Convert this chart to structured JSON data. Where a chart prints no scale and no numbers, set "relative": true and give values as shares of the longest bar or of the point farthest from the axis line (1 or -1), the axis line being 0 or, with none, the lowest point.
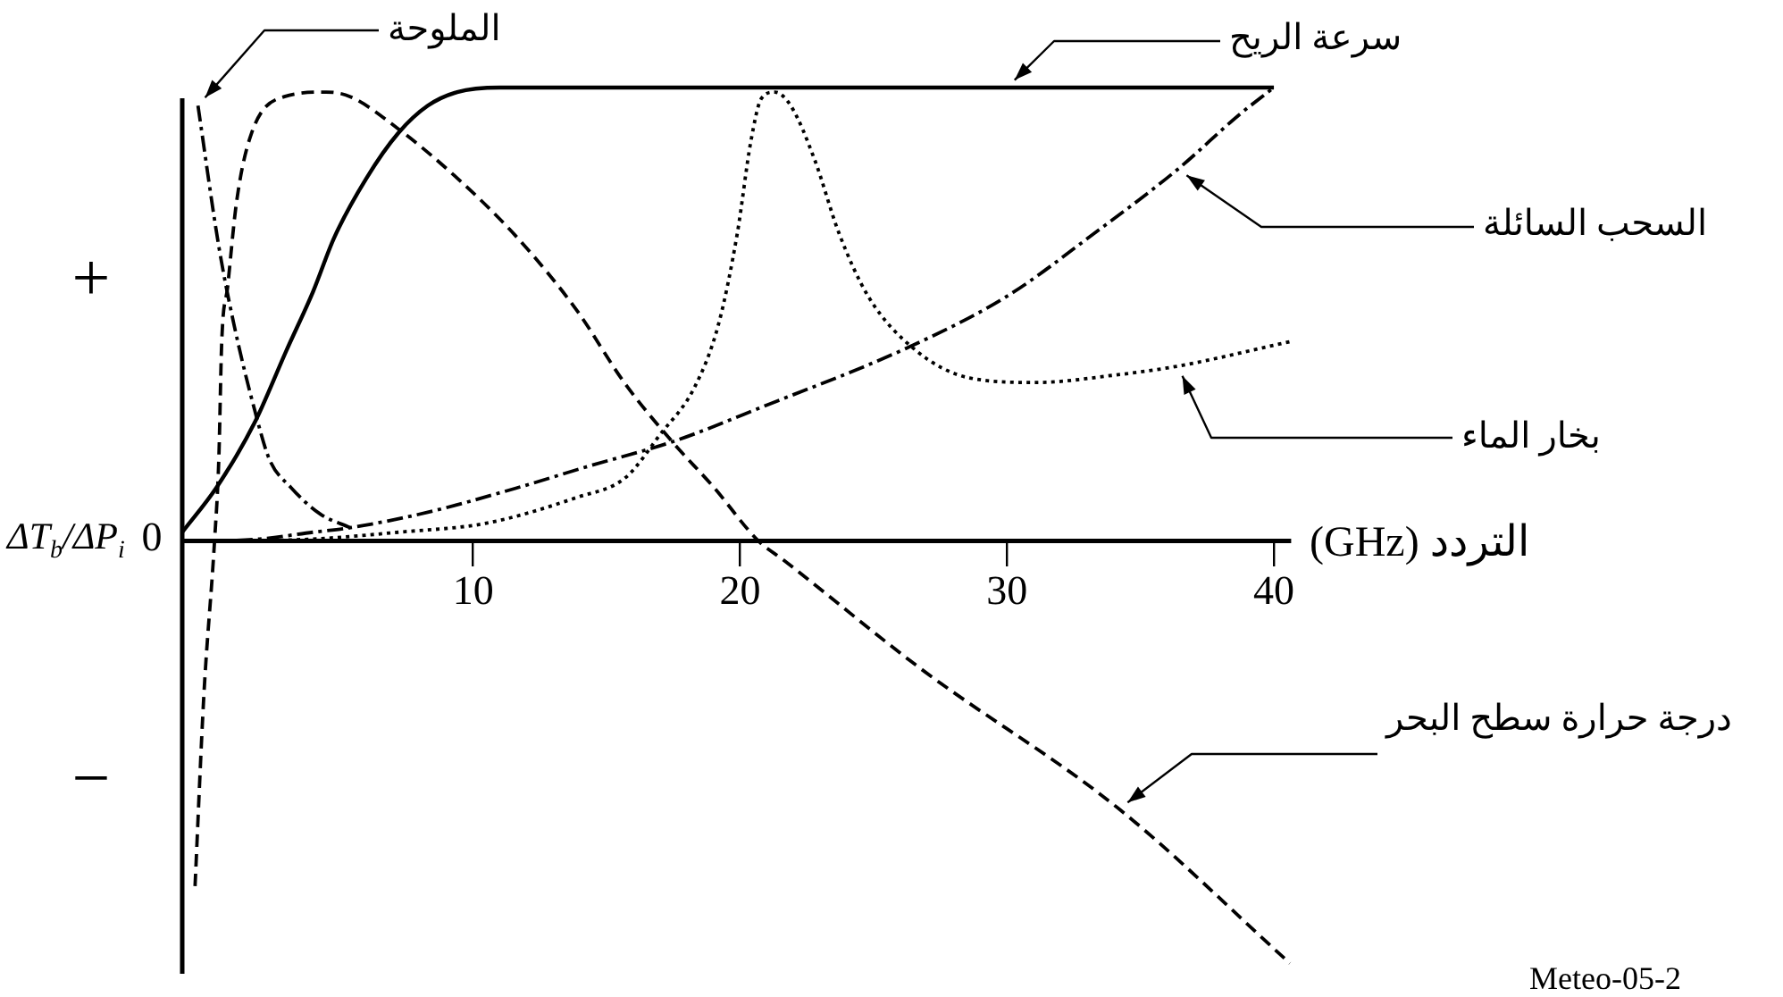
{
  "chart_data": {
    "type": "line",
    "relative": true,
    "xlabel": "التردد (GHz)",
    "ylabel": "ΔT$_{b}$/ΔP$_{i}$",
    "xlim": [
      -0.9,
      40.6
    ],
    "xticks": [
      10,
      20,
      30,
      40
    ],
    "annotations": [
      "+",
      "0",
      "−",
      "Meteo-05-2"
    ],
    "series": [
      {
        "name": "سرعة الريح",
        "color": "#000000",
        "line_style": "solid",
        "x": [
          -0.9,
          0.4,
          1.8,
          3.0,
          4.0,
          4.8,
          6.0,
          7.2,
          8.3,
          9.4,
          11,
          20,
          30,
          40
        ],
        "values": [
          0.02,
          0.12,
          0.26,
          0.42,
          0.55,
          0.67,
          0.8,
          0.9,
          0.96,
          0.99,
          1.0,
          1.0,
          1.0,
          1.0
        ]
      },
      {
        "name": "الملوحة",
        "color": "#000000",
        "line_style": "dashdot",
        "x": [
          -0.31,
          0.47,
          1.03,
          1.81,
          2.37,
          3.15,
          4.27,
          5.39
        ],
        "values": [
          0.96,
          0.65,
          0.48,
          0.29,
          0.18,
          0.12,
          0.06,
          0.03
        ]
      },
      {
        "name": "السحب السائلة",
        "color": "#000000",
        "line_style": "dashdot",
        "x": [
          0,
          2,
          4,
          5.4,
          8.3,
          11.6,
          14.3,
          17.5,
          21,
          26.4,
          30,
          33.3,
          36.4,
          38.7,
          40
        ],
        "values": [
          0,
          0.005,
          0.02,
          0.03,
          0.064,
          0.117,
          0.165,
          0.22,
          0.3,
          0.43,
          0.54,
          0.68,
          0.82,
          0.94,
          1.0
        ]
      },
      {
        "name": "بخار الماء",
        "color": "#000000",
        "line_style": "dotted",
        "x": [
          0,
          4,
          7.2,
          10.5,
          13.9,
          15.7,
          17,
          18.3,
          19.2,
          19.9,
          20.4,
          20.8,
          21.3,
          21.9,
          22.8,
          23.7,
          24.8,
          26.6,
          28.6,
          31.1,
          34,
          36.4,
          40.6
        ],
        "values": [
          0,
          0.005,
          0.02,
          0.04,
          0.097,
          0.14,
          0.235,
          0.34,
          0.48,
          0.68,
          0.88,
          0.976,
          0.99,
          0.96,
          0.84,
          0.68,
          0.54,
          0.42,
          0.36,
          0.35,
          0.366,
          0.386,
          0.44
        ]
      },
      {
        "name": "درجة حرارة سطح البحر",
        "color": "#000000",
        "line_style": "dashed",
        "x": [
          -0.42,
          -0.09,
          0.31,
          0.47,
          0.58,
          0.8,
          1.14,
          1.7,
          2.93,
          4.49,
          5.39,
          7.17,
          9.41,
          11.64,
          13.87,
          15.66,
          17.45,
          19.0,
          20.7,
          21.6,
          26.75,
          34.2,
          40.6
        ],
        "values": [
          -0.76,
          -0.34,
          0,
          0.18,
          0.44,
          0.56,
          0.75,
          0.9,
          0.98,
          0.99,
          0.98,
          0.91,
          0.8,
          0.67,
          0.51,
          0.35,
          0.22,
          0.12,
          0,
          -0.04,
          -0.28,
          -0.59,
          -0.93
        ]
      }
    ]
  }
}
